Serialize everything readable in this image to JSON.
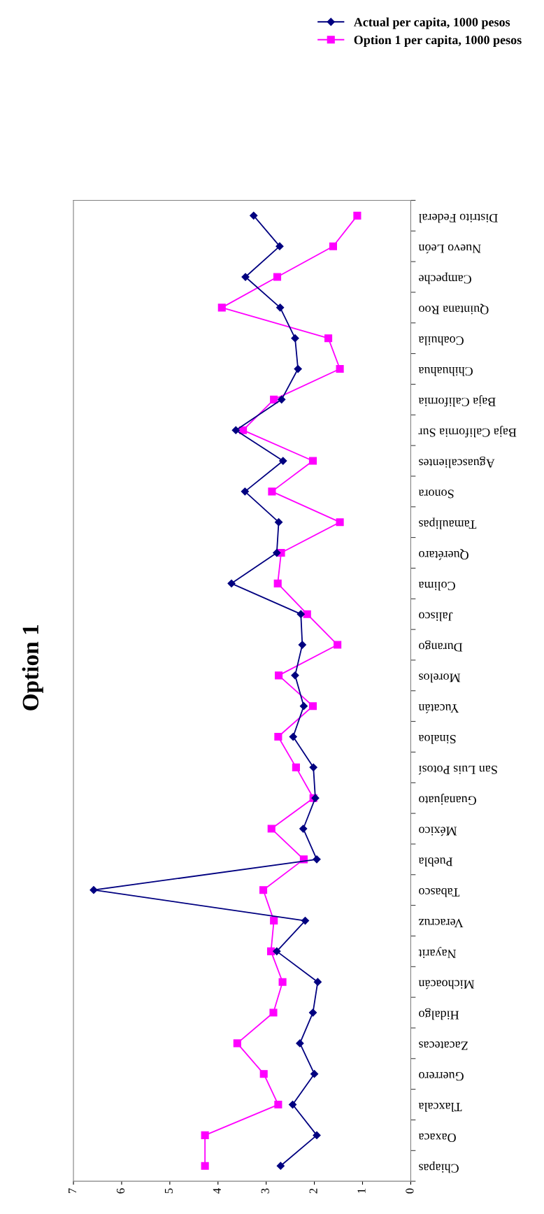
{
  "chart_data": {
    "type": "line",
    "title": "Option 1",
    "orientation": "horizontal",
    "categories": [
      "Distrito Federal",
      "Nuevo León",
      "Campeche",
      "Quintana Roo",
      "Coahuila",
      "Chihuahua",
      "Baja California",
      "Baja California Sur",
      "Aguascalientes",
      "Sonora",
      "Tamaulipas",
      "Querétaro",
      "Colima",
      "Jalisco",
      "Durango",
      "Morelos",
      "Yucatán",
      "Sinaloa",
      "San Luis Potosí",
      "Guanajuato",
      "México",
      "Puebla",
      "Tabasco",
      "Veracruz",
      "Nayarit",
      "Michoacán",
      "Hidalgo",
      "Zacatecas",
      "Guerrero",
      "Tlaxcala",
      "Oaxaca",
      "Chiapas"
    ],
    "series": [
      {
        "name": "Actual per capita, 1000 pesos",
        "color": "#000080",
        "marker": "diamond",
        "values": [
          3.26,
          2.72,
          3.43,
          2.71,
          2.4,
          2.34,
          2.68,
          3.63,
          2.65,
          3.44,
          2.74,
          2.78,
          3.72,
          2.28,
          2.25,
          2.4,
          2.22,
          2.44,
          2.02,
          1.98,
          2.23,
          1.95,
          6.58,
          2.19,
          2.78,
          1.93,
          2.03,
          2.3,
          2.0,
          2.45,
          1.95,
          2.7
        ]
      },
      {
        "name": "Option 1 per capita, 1000 pesos",
        "color": "#ff00ff",
        "marker": "square",
        "values": [
          1.11,
          1.61,
          2.77,
          3.92,
          1.71,
          1.47,
          2.84,
          3.48,
          2.03,
          2.88,
          1.47,
          2.69,
          2.76,
          2.15,
          1.52,
          2.74,
          2.03,
          2.75,
          2.38,
          2.02,
          2.89,
          2.22,
          3.06,
          2.84,
          2.9,
          2.66,
          2.85,
          3.6,
          3.05,
          2.75,
          4.27,
          4.27
        ]
      }
    ],
    "xlim": [
      7,
      0
    ],
    "xticks": [
      0,
      1,
      2,
      3,
      4,
      5,
      6,
      7
    ],
    "grid": false,
    "legend": "top right",
    "line_style": "solid"
  }
}
